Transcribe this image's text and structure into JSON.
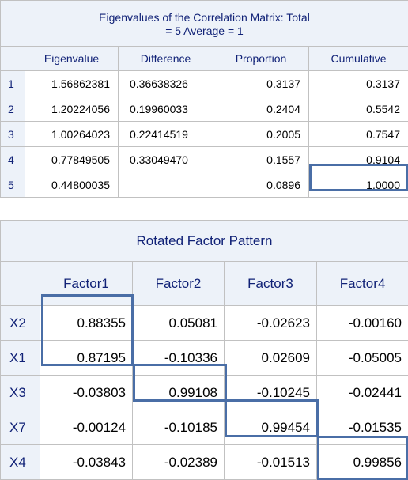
{
  "eigen_table": {
    "title_line1": "Eigenvalues of the Correlation Matrix: Total",
    "title_line2": "= 5 Average = 1",
    "columns": [
      "Eigenvalue",
      "Difference",
      "Proportion",
      "Cumulative"
    ],
    "rows": [
      {
        "n": "1",
        "eigenvalue": "1.56862381",
        "difference": "0.36638326",
        "proportion": "0.3137",
        "cumulative": "0.3137"
      },
      {
        "n": "2",
        "eigenvalue": "1.20224056",
        "difference": "0.19960033",
        "proportion": "0.2404",
        "cumulative": "0.5542"
      },
      {
        "n": "3",
        "eigenvalue": "1.00264023",
        "difference": "0.22414519",
        "proportion": "0.2005",
        "cumulative": "0.7547"
      },
      {
        "n": "4",
        "eigenvalue": "0.77849505",
        "difference": "0.33049470",
        "proportion": "0.1557",
        "cumulative": "0.9104"
      },
      {
        "n": "5",
        "eigenvalue": "0.44800035",
        "difference": "",
        "proportion": "0.0896",
        "cumulative": "1.0000"
      }
    ]
  },
  "rotated_table": {
    "title": "Rotated Factor Pattern",
    "columns": [
      "Factor1",
      "Factor2",
      "Factor3",
      "Factor4"
    ],
    "rows": [
      {
        "var": "X2",
        "values": [
          "0.88355",
          "0.05081",
          "-0.02623",
          "-0.00160"
        ]
      },
      {
        "var": "X1",
        "values": [
          "0.87195",
          "-0.10336",
          "0.02609",
          "-0.05005"
        ]
      },
      {
        "var": "X3",
        "values": [
          "-0.03803",
          "0.99108",
          "-0.10245",
          "-0.02441"
        ]
      },
      {
        "var": "X7",
        "values": [
          "-0.00124",
          "-0.10185",
          "0.99454",
          "-0.01535"
        ]
      },
      {
        "var": "X4",
        "values": [
          "-0.03843",
          "-0.02389",
          "-0.01513",
          "0.99856"
        ]
      }
    ]
  },
  "colors": {
    "header_bg": "#edf2f9",
    "header_text": "#112277",
    "highlight_border": "#4a6ea6"
  }
}
